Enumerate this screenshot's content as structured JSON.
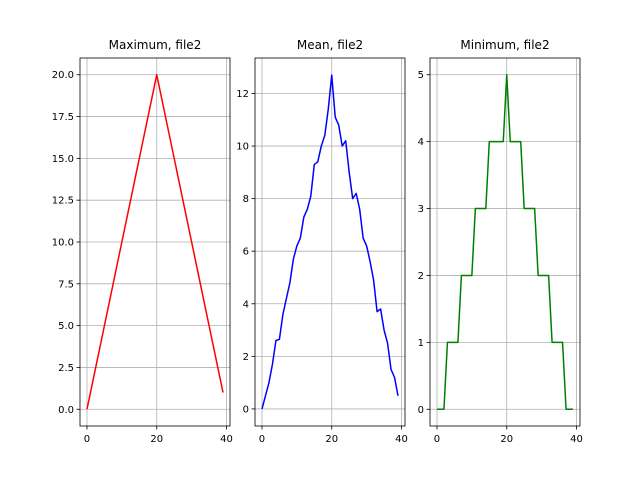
{
  "chart_data": [
    {
      "type": "line",
      "title": "Maximum, file2",
      "color": "#ff0000",
      "grid": true,
      "xlim": [
        -2,
        41
      ],
      "ylim": [
        -1,
        21
      ],
      "xticks": [
        0,
        20,
        40
      ],
      "yticks": [
        0.0,
        2.5,
        5.0,
        7.5,
        10.0,
        12.5,
        15.0,
        17.5,
        20.0
      ],
      "ytick_labels": [
        "0.0",
        "2.5",
        "5.0",
        "7.5",
        "10.0",
        "12.5",
        "15.0",
        "17.5",
        "20.0"
      ],
      "x": [
        0,
        1,
        2,
        3,
        4,
        5,
        6,
        7,
        8,
        9,
        10,
        11,
        12,
        13,
        14,
        15,
        16,
        17,
        18,
        19,
        20,
        21,
        22,
        23,
        24,
        25,
        26,
        27,
        28,
        29,
        30,
        31,
        32,
        33,
        34,
        35,
        36,
        37,
        38,
        39
      ],
      "y": [
        0,
        1,
        2,
        3,
        4,
        5,
        6,
        7,
        8,
        9,
        10,
        11,
        12,
        13,
        14,
        15,
        16,
        17,
        18,
        19,
        20,
        19,
        18,
        17,
        16,
        15,
        14,
        13,
        12,
        11,
        10,
        9,
        8,
        7,
        6,
        5,
        4,
        3,
        2,
        1
      ]
    },
    {
      "type": "line",
      "title": "Mean, file2",
      "color": "#0000ff",
      "grid": true,
      "xlim": [
        -2,
        41
      ],
      "ylim": [
        -0.65,
        13.35
      ],
      "xticks": [
        0,
        20,
        40
      ],
      "yticks": [
        0,
        2,
        4,
        6,
        8,
        10,
        12
      ],
      "ytick_labels": [
        "0",
        "2",
        "4",
        "6",
        "8",
        "10",
        "12"
      ],
      "x": [
        0,
        1,
        2,
        3,
        4,
        5,
        6,
        7,
        8,
        9,
        10,
        11,
        12,
        13,
        14,
        15,
        16,
        17,
        18,
        19,
        20,
        21,
        22,
        23,
        24,
        25,
        26,
        27,
        28,
        29,
        30,
        31,
        32,
        33,
        34,
        35,
        36,
        37,
        38,
        39
      ],
      "y": [
        0,
        0.5,
        1.0,
        1.7,
        2.6,
        2.65,
        3.6,
        4.2,
        4.8,
        5.7,
        6.2,
        6.5,
        7.3,
        7.6,
        8.1,
        9.3,
        9.4,
        10.0,
        10.4,
        11.4,
        12.7,
        11.1,
        10.8,
        10.0,
        10.2,
        9.0,
        8.0,
        8.2,
        7.6,
        6.5,
        6.2,
        5.6,
        4.9,
        3.7,
        3.8,
        3.0,
        2.5,
        1.5,
        1.2,
        0.5
      ]
    },
    {
      "type": "line",
      "title": "Minimum, file2",
      "color": "#008000",
      "grid": true,
      "xlim": [
        -2,
        41
      ],
      "ylim": [
        -0.25,
        5.25
      ],
      "xticks": [
        0,
        20,
        40
      ],
      "yticks": [
        0,
        1,
        2,
        3,
        4,
        5
      ],
      "ytick_labels": [
        "0",
        "1",
        "2",
        "3",
        "4",
        "5"
      ],
      "x": [
        0,
        1,
        2,
        3,
        4,
        5,
        6,
        7,
        8,
        9,
        10,
        11,
        12,
        13,
        14,
        15,
        16,
        17,
        18,
        19,
        20,
        21,
        22,
        23,
        24,
        25,
        26,
        27,
        28,
        29,
        30,
        31,
        32,
        33,
        34,
        35,
        36,
        37,
        38,
        39
      ],
      "y": [
        0,
        0,
        0,
        1,
        1,
        1,
        1,
        2,
        2,
        2,
        2,
        3,
        3,
        3,
        3,
        4,
        4,
        4,
        4,
        4,
        5,
        4,
        4,
        4,
        4,
        3,
        3,
        3,
        3,
        2,
        2,
        2,
        2,
        1,
        1,
        1,
        1,
        0,
        0,
        0
      ]
    }
  ]
}
